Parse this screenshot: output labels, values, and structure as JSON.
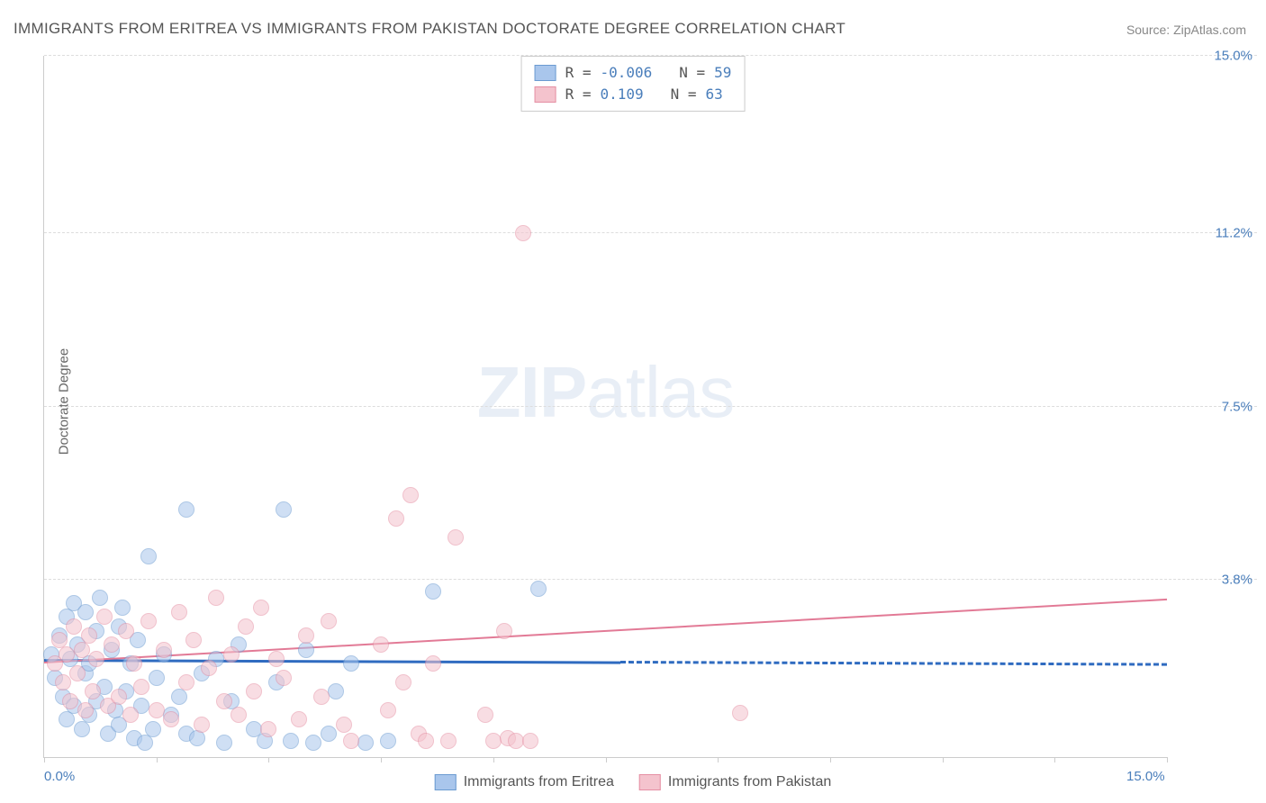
{
  "title": "IMMIGRANTS FROM ERITREA VS IMMIGRANTS FROM PAKISTAN DOCTORATE DEGREE CORRELATION CHART",
  "source": "Source: ZipAtlas.com",
  "ylabel": "Doctorate Degree",
  "watermark_zip": "ZIP",
  "watermark_atlas": "atlas",
  "chart": {
    "type": "scatter",
    "xlim": [
      0,
      15
    ],
    "ylim": [
      0,
      15
    ],
    "xticks": [
      0,
      1.5,
      3,
      4.5,
      6,
      7.5,
      9,
      10.5,
      12,
      13.5,
      15
    ],
    "xtick_labels_shown": {
      "0": "0.0%",
      "15": "15.0%"
    },
    "yticks": [
      3.8,
      7.5,
      11.2,
      15.0
    ],
    "ytick_labels": [
      "3.8%",
      "7.5%",
      "11.2%",
      "15.0%"
    ],
    "background_color": "#ffffff",
    "grid_color": "#dddddd",
    "axis_color": "#cccccc",
    "axis_label_color": "#4a7ebb",
    "marker_radius": 9,
    "marker_opacity": 0.55,
    "series": [
      {
        "name": "Immigrants from Eritrea",
        "fill": "#a9c6ec",
        "stroke": "#6b9bd1",
        "R_label": "R =",
        "R": "-0.006",
        "N_label": "N =",
        "N": "59",
        "trend": {
          "start": [
            0,
            2.05
          ],
          "end_solid": [
            7.7,
            2.0
          ],
          "end_dash": [
            15,
            1.95
          ],
          "color": "#2f6bc0",
          "width": 3
        },
        "points": [
          [
            0.1,
            2.2
          ],
          [
            0.15,
            1.7
          ],
          [
            0.2,
            2.6
          ],
          [
            0.25,
            1.3
          ],
          [
            0.3,
            3.0
          ],
          [
            0.3,
            0.8
          ],
          [
            0.35,
            2.1
          ],
          [
            0.4,
            3.3
          ],
          [
            0.4,
            1.1
          ],
          [
            0.45,
            2.4
          ],
          [
            0.5,
            0.6
          ],
          [
            0.55,
            1.8
          ],
          [
            0.55,
            3.1
          ],
          [
            0.6,
            2.0
          ],
          [
            0.6,
            0.9
          ],
          [
            0.7,
            2.7
          ],
          [
            0.7,
            1.2
          ],
          [
            0.75,
            3.4
          ],
          [
            0.8,
            1.5
          ],
          [
            0.85,
            0.5
          ],
          [
            0.9,
            2.3
          ],
          [
            0.95,
            1.0
          ],
          [
            1.0,
            2.8
          ],
          [
            1.0,
            0.7
          ],
          [
            1.05,
            3.2
          ],
          [
            1.1,
            1.4
          ],
          [
            1.15,
            2.0
          ],
          [
            1.2,
            0.4
          ],
          [
            1.25,
            2.5
          ],
          [
            1.3,
            1.1
          ],
          [
            1.35,
            0.3
          ],
          [
            1.4,
            4.3
          ],
          [
            1.45,
            0.6
          ],
          [
            1.5,
            1.7
          ],
          [
            1.6,
            2.2
          ],
          [
            1.7,
            0.9
          ],
          [
            1.8,
            1.3
          ],
          [
            1.9,
            5.3
          ],
          [
            1.9,
            0.5
          ],
          [
            2.05,
            0.4
          ],
          [
            2.1,
            1.8
          ],
          [
            2.3,
            2.1
          ],
          [
            2.4,
            0.3
          ],
          [
            2.5,
            1.2
          ],
          [
            2.6,
            2.4
          ],
          [
            2.8,
            0.6
          ],
          [
            2.95,
            0.35
          ],
          [
            3.1,
            1.6
          ],
          [
            3.2,
            5.3
          ],
          [
            3.3,
            0.35
          ],
          [
            3.5,
            2.3
          ],
          [
            3.6,
            0.3
          ],
          [
            3.8,
            0.5
          ],
          [
            3.9,
            1.4
          ],
          [
            4.1,
            2.0
          ],
          [
            4.3,
            0.3
          ],
          [
            4.6,
            0.35
          ],
          [
            5.2,
            3.55
          ],
          [
            6.6,
            3.6
          ]
        ]
      },
      {
        "name": "Immigrants from Pakistan",
        "fill": "#f4c3cd",
        "stroke": "#e58fa3",
        "R_label": "R =",
        "R": " 0.109",
        "N_label": "N =",
        "N": "63",
        "trend": {
          "start": [
            0,
            2.0
          ],
          "end_solid": [
            15,
            3.35
          ],
          "color": "#e27a96",
          "width": 2
        },
        "points": [
          [
            0.15,
            2.0
          ],
          [
            0.2,
            2.5
          ],
          [
            0.25,
            1.6
          ],
          [
            0.3,
            2.2
          ],
          [
            0.35,
            1.2
          ],
          [
            0.4,
            2.8
          ],
          [
            0.45,
            1.8
          ],
          [
            0.5,
            2.3
          ],
          [
            0.55,
            1.0
          ],
          [
            0.6,
            2.6
          ],
          [
            0.65,
            1.4
          ],
          [
            0.7,
            2.1
          ],
          [
            0.8,
            3.0
          ],
          [
            0.85,
            1.1
          ],
          [
            0.9,
            2.4
          ],
          [
            1.0,
            1.3
          ],
          [
            1.1,
            2.7
          ],
          [
            1.15,
            0.9
          ],
          [
            1.2,
            2.0
          ],
          [
            1.3,
            1.5
          ],
          [
            1.4,
            2.9
          ],
          [
            1.5,
            1.0
          ],
          [
            1.6,
            2.3
          ],
          [
            1.7,
            0.8
          ],
          [
            1.8,
            3.1
          ],
          [
            1.9,
            1.6
          ],
          [
            2.0,
            2.5
          ],
          [
            2.1,
            0.7
          ],
          [
            2.2,
            1.9
          ],
          [
            2.3,
            3.4
          ],
          [
            2.4,
            1.2
          ],
          [
            2.5,
            2.2
          ],
          [
            2.6,
            0.9
          ],
          [
            2.7,
            2.8
          ],
          [
            2.8,
            1.4
          ],
          [
            2.9,
            3.2
          ],
          [
            3.0,
            0.6
          ],
          [
            3.1,
            2.1
          ],
          [
            3.2,
            1.7
          ],
          [
            3.4,
            0.8
          ],
          [
            3.5,
            2.6
          ],
          [
            3.7,
            1.3
          ],
          [
            3.8,
            2.9
          ],
          [
            4.0,
            0.7
          ],
          [
            4.1,
            0.35
          ],
          [
            4.5,
            2.4
          ],
          [
            4.6,
            1.0
          ],
          [
            4.7,
            5.1
          ],
          [
            4.8,
            1.6
          ],
          [
            4.9,
            5.6
          ],
          [
            5.0,
            0.5
          ],
          [
            5.1,
            0.35
          ],
          [
            5.2,
            2.0
          ],
          [
            5.4,
            0.35
          ],
          [
            5.5,
            4.7
          ],
          [
            5.9,
            0.9
          ],
          [
            6.0,
            0.35
          ],
          [
            6.15,
            2.7
          ],
          [
            6.2,
            0.4
          ],
          [
            6.3,
            0.35
          ],
          [
            6.4,
            11.2
          ],
          [
            6.5,
            0.35
          ],
          [
            9.3,
            0.95
          ]
        ]
      }
    ]
  },
  "legend_bottom": [
    {
      "label": "Immigrants from Eritrea",
      "fill": "#a9c6ec",
      "stroke": "#6b9bd1"
    },
    {
      "label": "Immigrants from Pakistan",
      "fill": "#f4c3cd",
      "stroke": "#e58fa3"
    }
  ]
}
